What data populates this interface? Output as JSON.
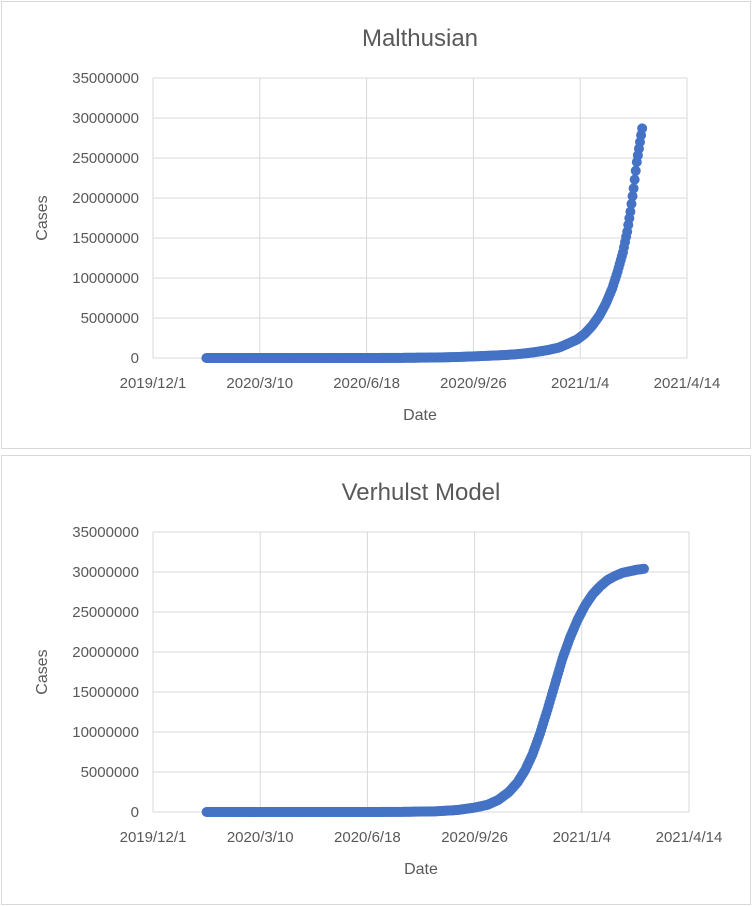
{
  "chart_data": [
    {
      "type": "scatter",
      "title": "Malthusian",
      "xlabel": "Date",
      "ylabel": "Cases",
      "xlim": [
        "2019-12-01",
        "2021-04-14"
      ],
      "ylim": [
        0,
        35000000
      ],
      "x_ticks": [
        "2019/12/1",
        "2020/3/10",
        "2020/6/18",
        "2020/9/26",
        "2021/1/4",
        "2021/4/14"
      ],
      "y_ticks": [
        "0",
        "5000000",
        "10000000",
        "15000000",
        "20000000",
        "25000000",
        "30000000",
        "35000000"
      ],
      "grid": true,
      "marker_color": "#4472c4",
      "series": [
        {
          "x": [
            "2020-01-20",
            "2020-02-15",
            "2020-03-10",
            "2020-04-10",
            "2020-05-10",
            "2020-06-18",
            "2020-07-20",
            "2020-08-20",
            "2020-09-10",
            "2020-09-26",
            "2020-10-10",
            "2020-10-25",
            "2020-11-05",
            "2020-11-15",
            "2020-11-25",
            "2020-12-05",
            "2020-12-15",
            "2020-12-22",
            "2021-01-01",
            "2021-01-08",
            "2021-01-15",
            "2021-01-22",
            "2021-01-28",
            "2021-02-03",
            "2021-02-08",
            "2021-02-13",
            "2021-02-17",
            "2021-02-20",
            "2021-02-23",
            "2021-02-26",
            "2021-03-01",
            "2021-03-03"
          ],
          "y": [
            0,
            0,
            0,
            0,
            0,
            0,
            20000,
            60000,
            120000,
            200000,
            280000,
            370000,
            470000,
            600000,
            780000,
            1000000,
            1300000,
            1700000,
            2300000,
            3000000,
            4000000,
            5300000,
            6800000,
            8700000,
            10800000,
            13200000,
            15800000,
            18300000,
            21200000,
            24500000,
            27000000,
            28700000
          ]
        }
      ]
    },
    {
      "type": "scatter",
      "title": "Verhulst Model",
      "xlabel": "Date",
      "ylabel": "Cases",
      "xlim": [
        "2019-12-01",
        "2021-04-14"
      ],
      "ylim": [
        0,
        35000000
      ],
      "x_ticks": [
        "2019/12/1",
        "2020/3/10",
        "2020/6/18",
        "2020/9/26",
        "2021/1/4",
        "2021/4/14"
      ],
      "y_ticks": [
        "0",
        "5000000",
        "10000000",
        "15000000",
        "20000000",
        "25000000",
        "30000000",
        "35000000"
      ],
      "grid": true,
      "marker_color": "#4472c4",
      "series": [
        {
          "x": [
            "2020-01-20",
            "2020-02-20",
            "2020-03-20",
            "2020-04-20",
            "2020-05-20",
            "2020-06-18",
            "2020-07-20",
            "2020-08-20",
            "2020-09-10",
            "2020-09-26",
            "2020-10-08",
            "2020-10-18",
            "2020-10-28",
            "2020-11-05",
            "2020-11-12",
            "2020-11-19",
            "2020-11-26",
            "2020-12-03",
            "2020-12-10",
            "2020-12-17",
            "2020-12-24",
            "2020-12-31",
            "2021-01-07",
            "2021-01-14",
            "2021-01-21",
            "2021-01-28",
            "2021-02-04",
            "2021-02-11",
            "2021-02-18",
            "2021-02-25",
            "2021-03-03"
          ],
          "y": [
            0,
            0,
            0,
            0,
            0,
            0,
            20000,
            80000,
            250000,
            550000,
            900000,
            1500000,
            2500000,
            3700000,
            5200000,
            7200000,
            9800000,
            12800000,
            16000000,
            19200000,
            21800000,
            24000000,
            25800000,
            27200000,
            28200000,
            29000000,
            29500000,
            29900000,
            30100000,
            30300000,
            30400000
          ]
        }
      ]
    }
  ]
}
